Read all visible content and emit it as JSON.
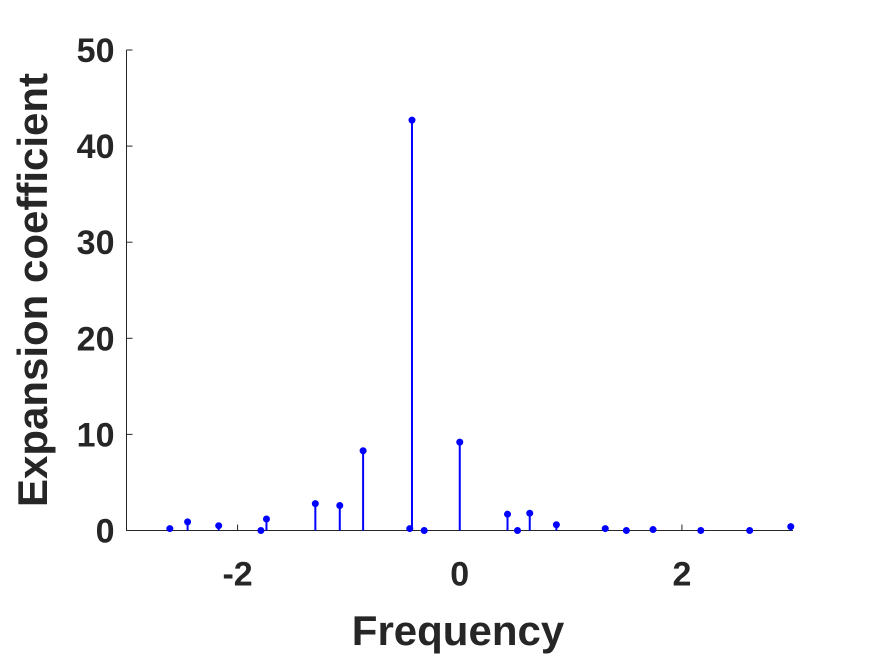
{
  "chart_data": {
    "type": "scatter",
    "subtype": "stem",
    "title": "",
    "xlabel": "Frequency",
    "ylabel": "Expansion coefficient",
    "xlim": [
      -3,
      3
    ],
    "ylim": [
      0,
      50
    ],
    "xticks": [
      -2,
      0,
      2
    ],
    "xtick_labels": [
      "-2",
      "0",
      "2"
    ],
    "yticks": [
      0,
      10,
      20,
      30,
      40,
      50
    ],
    "ytick_labels": [
      "0",
      "10",
      "20",
      "30",
      "40",
      "50"
    ],
    "grid": false,
    "color": "#0000ff",
    "series": [
      {
        "x": [
          -2.61,
          -2.45,
          -2.17,
          -1.79,
          -1.74,
          -1.3,
          -1.08,
          -0.87,
          -0.45,
          -0.43,
          -0.32,
          0.0,
          0.43,
          0.52,
          0.63,
          0.87,
          1.31,
          1.5,
          1.74,
          2.17,
          2.61,
          2.98
        ],
        "y": [
          0.2,
          0.9,
          0.5,
          0.0,
          1.2,
          2.8,
          2.6,
          8.3,
          0.2,
          42.7,
          0.0,
          9.2,
          1.7,
          0.0,
          1.8,
          0.6,
          0.2,
          0.0,
          0.1,
          0.0,
          0.0,
          0.4
        ]
      }
    ]
  }
}
